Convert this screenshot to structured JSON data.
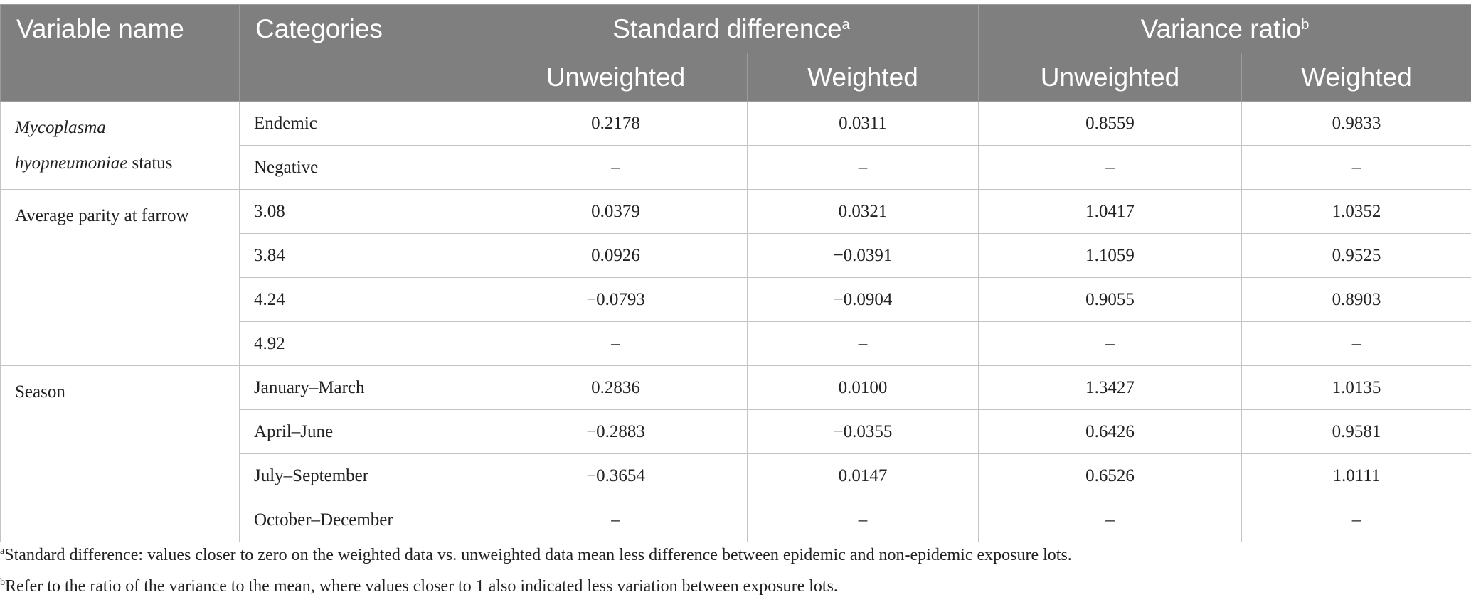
{
  "header": {
    "variable_name": "Variable name",
    "categories": "Categories",
    "std_diff": "Standard difference",
    "std_diff_sup": "a",
    "var_ratio": "Variance ratio",
    "var_ratio_sup": "b",
    "unweighted": "Unweighted",
    "weighted": "Weighted"
  },
  "groups": [
    {
      "name_italic": "Mycoplasma",
      "name_italic2": "hyopneumoniae",
      "name_suffix": " status",
      "rows": [
        {
          "category": "Endemic",
          "sd_unw": "0.2178",
          "sd_w": "0.0311",
          "vr_unw": "0.8559",
          "vr_w": "0.9833"
        },
        {
          "category": "Negative",
          "sd_unw": "–",
          "sd_w": "–",
          "vr_unw": "–",
          "vr_w": "–"
        }
      ]
    },
    {
      "name": "Average parity at farrow",
      "rows": [
        {
          "category": "3.08",
          "sd_unw": "0.0379",
          "sd_w": "0.0321",
          "vr_unw": "1.0417",
          "vr_w": "1.0352"
        },
        {
          "category": "3.84",
          "sd_unw": "0.0926",
          "sd_w": "−0.0391",
          "vr_unw": "1.1059",
          "vr_w": "0.9525"
        },
        {
          "category": "4.24",
          "sd_unw": "−0.0793",
          "sd_w": "−0.0904",
          "vr_unw": "0.9055",
          "vr_w": "0.8903"
        },
        {
          "category": "4.92",
          "sd_unw": "–",
          "sd_w": "–",
          "vr_unw": "–",
          "vr_w": "–"
        }
      ]
    },
    {
      "name": "Season",
      "rows": [
        {
          "category": "January–March",
          "sd_unw": "0.2836",
          "sd_w": "0.0100",
          "vr_unw": "1.3427",
          "vr_w": "1.0135"
        },
        {
          "category": "April–June",
          "sd_unw": "−0.2883",
          "sd_w": "−0.0355",
          "vr_unw": "0.6426",
          "vr_w": "0.9581"
        },
        {
          "category": "July–September",
          "sd_unw": "−0.3654",
          "sd_w": "0.0147",
          "vr_unw": "0.6526",
          "vr_w": "1.0111"
        },
        {
          "category": "October–December",
          "sd_unw": "–",
          "sd_w": "–",
          "vr_unw": "–",
          "vr_w": "–"
        }
      ]
    }
  ],
  "footnotes": [
    {
      "mark": "a",
      "text": "Standard difference: values closer to zero on the weighted data vs. unweighted data mean less difference between epidemic and non-epidemic exposure lots."
    },
    {
      "mark": "b",
      "text": "Refer to the ratio of the variance to the mean, where values closer to 1 also indicated less variation between exposure lots."
    }
  ]
}
